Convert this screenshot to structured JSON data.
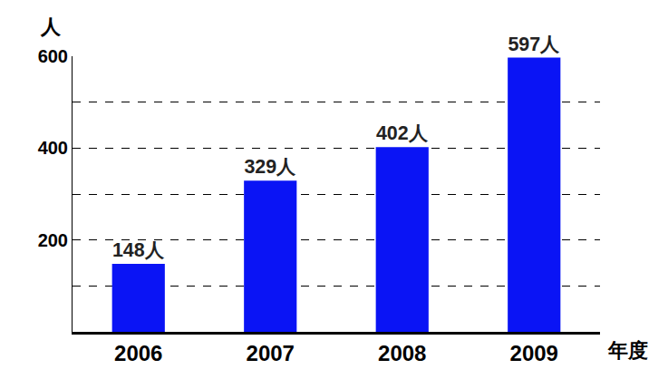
{
  "chart_data": {
    "type": "bar",
    "categories": [
      "2006",
      "2007",
      "2008",
      "2009"
    ],
    "values": [
      148,
      329,
      402,
      597
    ],
    "value_labels": [
      "148人",
      "329人",
      "402人",
      "597人"
    ],
    "data_labels": true,
    "color": "#0a14f5",
    "x_label": "年度",
    "y_label": "人",
    "ylim": [
      0,
      600
    ],
    "yticks": [
      200,
      400,
      600
    ],
    "grid": true
  }
}
